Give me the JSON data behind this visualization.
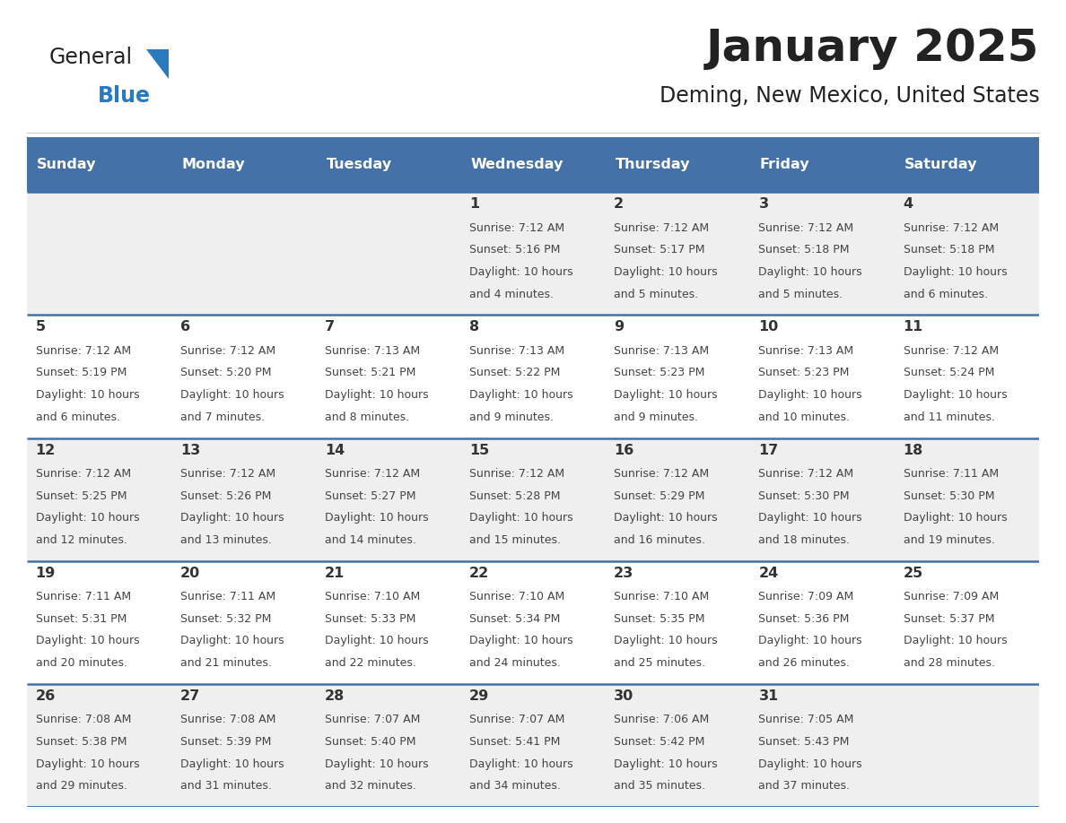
{
  "title": "January 2025",
  "subtitle": "Deming, New Mexico, United States",
  "header_color": "#4472a8",
  "header_text_color": "#ffffff",
  "day_names": [
    "Sunday",
    "Monday",
    "Tuesday",
    "Wednesday",
    "Thursday",
    "Friday",
    "Saturday"
  ],
  "cell_bg_even": "#efefef",
  "cell_bg_odd": "#ffffff",
  "number_color": "#333333",
  "text_color": "#444444",
  "divider_color": "#4472a8",
  "weeks": [
    [
      {
        "day": "",
        "sunrise": "",
        "sunset": "",
        "daylight": ""
      },
      {
        "day": "",
        "sunrise": "",
        "sunset": "",
        "daylight": ""
      },
      {
        "day": "",
        "sunrise": "",
        "sunset": "",
        "daylight": ""
      },
      {
        "day": "1",
        "sunrise": "7:12 AM",
        "sunset": "5:16 PM",
        "daylight": "10 hours and 4 minutes."
      },
      {
        "day": "2",
        "sunrise": "7:12 AM",
        "sunset": "5:17 PM",
        "daylight": "10 hours and 5 minutes."
      },
      {
        "day": "3",
        "sunrise": "7:12 AM",
        "sunset": "5:18 PM",
        "daylight": "10 hours and 5 minutes."
      },
      {
        "day": "4",
        "sunrise": "7:12 AM",
        "sunset": "5:18 PM",
        "daylight": "10 hours and 6 minutes."
      }
    ],
    [
      {
        "day": "5",
        "sunrise": "7:12 AM",
        "sunset": "5:19 PM",
        "daylight": "10 hours and 6 minutes."
      },
      {
        "day": "6",
        "sunrise": "7:12 AM",
        "sunset": "5:20 PM",
        "daylight": "10 hours and 7 minutes."
      },
      {
        "day": "7",
        "sunrise": "7:13 AM",
        "sunset": "5:21 PM",
        "daylight": "10 hours and 8 minutes."
      },
      {
        "day": "8",
        "sunrise": "7:13 AM",
        "sunset": "5:22 PM",
        "daylight": "10 hours and 9 minutes."
      },
      {
        "day": "9",
        "sunrise": "7:13 AM",
        "sunset": "5:23 PM",
        "daylight": "10 hours and 9 minutes."
      },
      {
        "day": "10",
        "sunrise": "7:13 AM",
        "sunset": "5:23 PM",
        "daylight": "10 hours and 10 minutes."
      },
      {
        "day": "11",
        "sunrise": "7:12 AM",
        "sunset": "5:24 PM",
        "daylight": "10 hours and 11 minutes."
      }
    ],
    [
      {
        "day": "12",
        "sunrise": "7:12 AM",
        "sunset": "5:25 PM",
        "daylight": "10 hours and 12 minutes."
      },
      {
        "day": "13",
        "sunrise": "7:12 AM",
        "sunset": "5:26 PM",
        "daylight": "10 hours and 13 minutes."
      },
      {
        "day": "14",
        "sunrise": "7:12 AM",
        "sunset": "5:27 PM",
        "daylight": "10 hours and 14 minutes."
      },
      {
        "day": "15",
        "sunrise": "7:12 AM",
        "sunset": "5:28 PM",
        "daylight": "10 hours and 15 minutes."
      },
      {
        "day": "16",
        "sunrise": "7:12 AM",
        "sunset": "5:29 PM",
        "daylight": "10 hours and 16 minutes."
      },
      {
        "day": "17",
        "sunrise": "7:12 AM",
        "sunset": "5:30 PM",
        "daylight": "10 hours and 18 minutes."
      },
      {
        "day": "18",
        "sunrise": "7:11 AM",
        "sunset": "5:30 PM",
        "daylight": "10 hours and 19 minutes."
      }
    ],
    [
      {
        "day": "19",
        "sunrise": "7:11 AM",
        "sunset": "5:31 PM",
        "daylight": "10 hours and 20 minutes."
      },
      {
        "day": "20",
        "sunrise": "7:11 AM",
        "sunset": "5:32 PM",
        "daylight": "10 hours and 21 minutes."
      },
      {
        "day": "21",
        "sunrise": "7:10 AM",
        "sunset": "5:33 PM",
        "daylight": "10 hours and 22 minutes."
      },
      {
        "day": "22",
        "sunrise": "7:10 AM",
        "sunset": "5:34 PM",
        "daylight": "10 hours and 24 minutes."
      },
      {
        "day": "23",
        "sunrise": "7:10 AM",
        "sunset": "5:35 PM",
        "daylight": "10 hours and 25 minutes."
      },
      {
        "day": "24",
        "sunrise": "7:09 AM",
        "sunset": "5:36 PM",
        "daylight": "10 hours and 26 minutes."
      },
      {
        "day": "25",
        "sunrise": "7:09 AM",
        "sunset": "5:37 PM",
        "daylight": "10 hours and 28 minutes."
      }
    ],
    [
      {
        "day": "26",
        "sunrise": "7:08 AM",
        "sunset": "5:38 PM",
        "daylight": "10 hours and 29 minutes."
      },
      {
        "day": "27",
        "sunrise": "7:08 AM",
        "sunset": "5:39 PM",
        "daylight": "10 hours and 31 minutes."
      },
      {
        "day": "28",
        "sunrise": "7:07 AM",
        "sunset": "5:40 PM",
        "daylight": "10 hours and 32 minutes."
      },
      {
        "day": "29",
        "sunrise": "7:07 AM",
        "sunset": "5:41 PM",
        "daylight": "10 hours and 34 minutes."
      },
      {
        "day": "30",
        "sunrise": "7:06 AM",
        "sunset": "5:42 PM",
        "daylight": "10 hours and 35 minutes."
      },
      {
        "day": "31",
        "sunrise": "7:05 AM",
        "sunset": "5:43 PM",
        "daylight": "10 hours and 37 minutes."
      },
      {
        "day": "",
        "sunrise": "",
        "sunset": "",
        "daylight": ""
      }
    ]
  ]
}
